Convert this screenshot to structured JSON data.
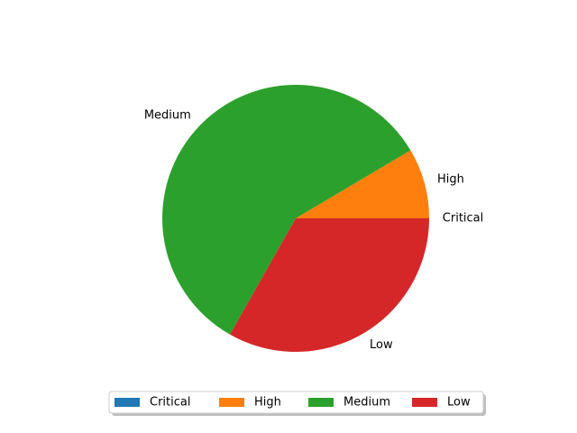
{
  "chart_data": {
    "type": "pie",
    "categories": [
      "Critical",
      "High",
      "Medium",
      "Low"
    ],
    "values": [
      0,
      8.5,
      58.3,
      33.2
    ],
    "colors": [
      "#1f77b4",
      "#ff7f0e",
      "#2ca02c",
      "#d62728"
    ],
    "start_angle_deg": 0,
    "direction": "counterclockwise",
    "legend": {
      "placement": "bottom-center",
      "columns": 4,
      "shadow": true
    },
    "title": ""
  }
}
